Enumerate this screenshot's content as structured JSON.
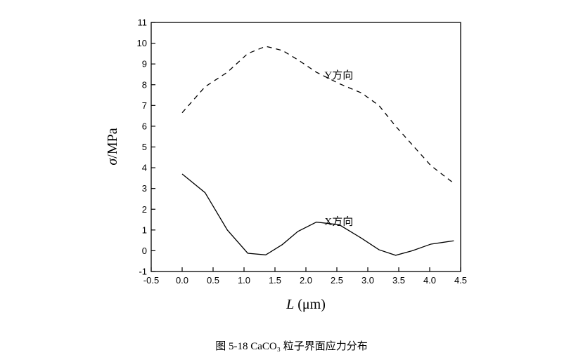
{
  "chart_data": {
    "type": "line",
    "title": "",
    "xlabel": "L (μm)",
    "xlabel_italic_part": "L",
    "xlabel_unit": " (μm)",
    "ylabel_symbol": "σ",
    "ylabel_unit": "/MPa",
    "xlim": [
      -0.5,
      4.5
    ],
    "ylim": [
      -1,
      11
    ],
    "xticks": [
      "-0.5",
      "0.0",
      "0.5",
      "1.0",
      "1.5",
      "2.0",
      "2.5",
      "3.0",
      "3.5",
      "4.0",
      "4.5"
    ],
    "yticks": [
      "-1",
      "0",
      "1",
      "2",
      "3",
      "4",
      "5",
      "6",
      "7",
      "8",
      "9",
      "10",
      "11"
    ],
    "grid": false,
    "series": [
      {
        "name": "Y方向",
        "style": "dashed",
        "color": "#000000",
        "x": [
          0.0,
          0.37,
          0.73,
          1.06,
          1.35,
          1.62,
          1.87,
          2.17,
          2.54,
          2.9,
          3.18,
          3.45,
          3.72,
          4.02,
          4.39
        ],
        "y": [
          6.65,
          7.9,
          8.6,
          9.5,
          9.85,
          9.65,
          9.2,
          8.6,
          8.05,
          7.6,
          7.0,
          6.0,
          5.1,
          4.1,
          3.25
        ],
        "label_at": [
          2.3,
          8.5
        ]
      },
      {
        "name": "X方向",
        "style": "solid",
        "color": "#000000",
        "x": [
          0.0,
          0.37,
          0.73,
          1.06,
          1.35,
          1.62,
          1.87,
          2.17,
          2.54,
          2.9,
          3.18,
          3.45,
          3.72,
          4.02,
          4.39
        ],
        "y": [
          3.7,
          2.8,
          1.0,
          -0.12,
          -0.2,
          0.3,
          0.93,
          1.38,
          1.25,
          0.6,
          0.05,
          -0.22,
          0.0,
          0.32,
          0.48
        ],
        "label_at": [
          2.3,
          1.45
        ]
      }
    ]
  },
  "caption": "图 5-18 CaCO₃ 粒子界面应力分布"
}
